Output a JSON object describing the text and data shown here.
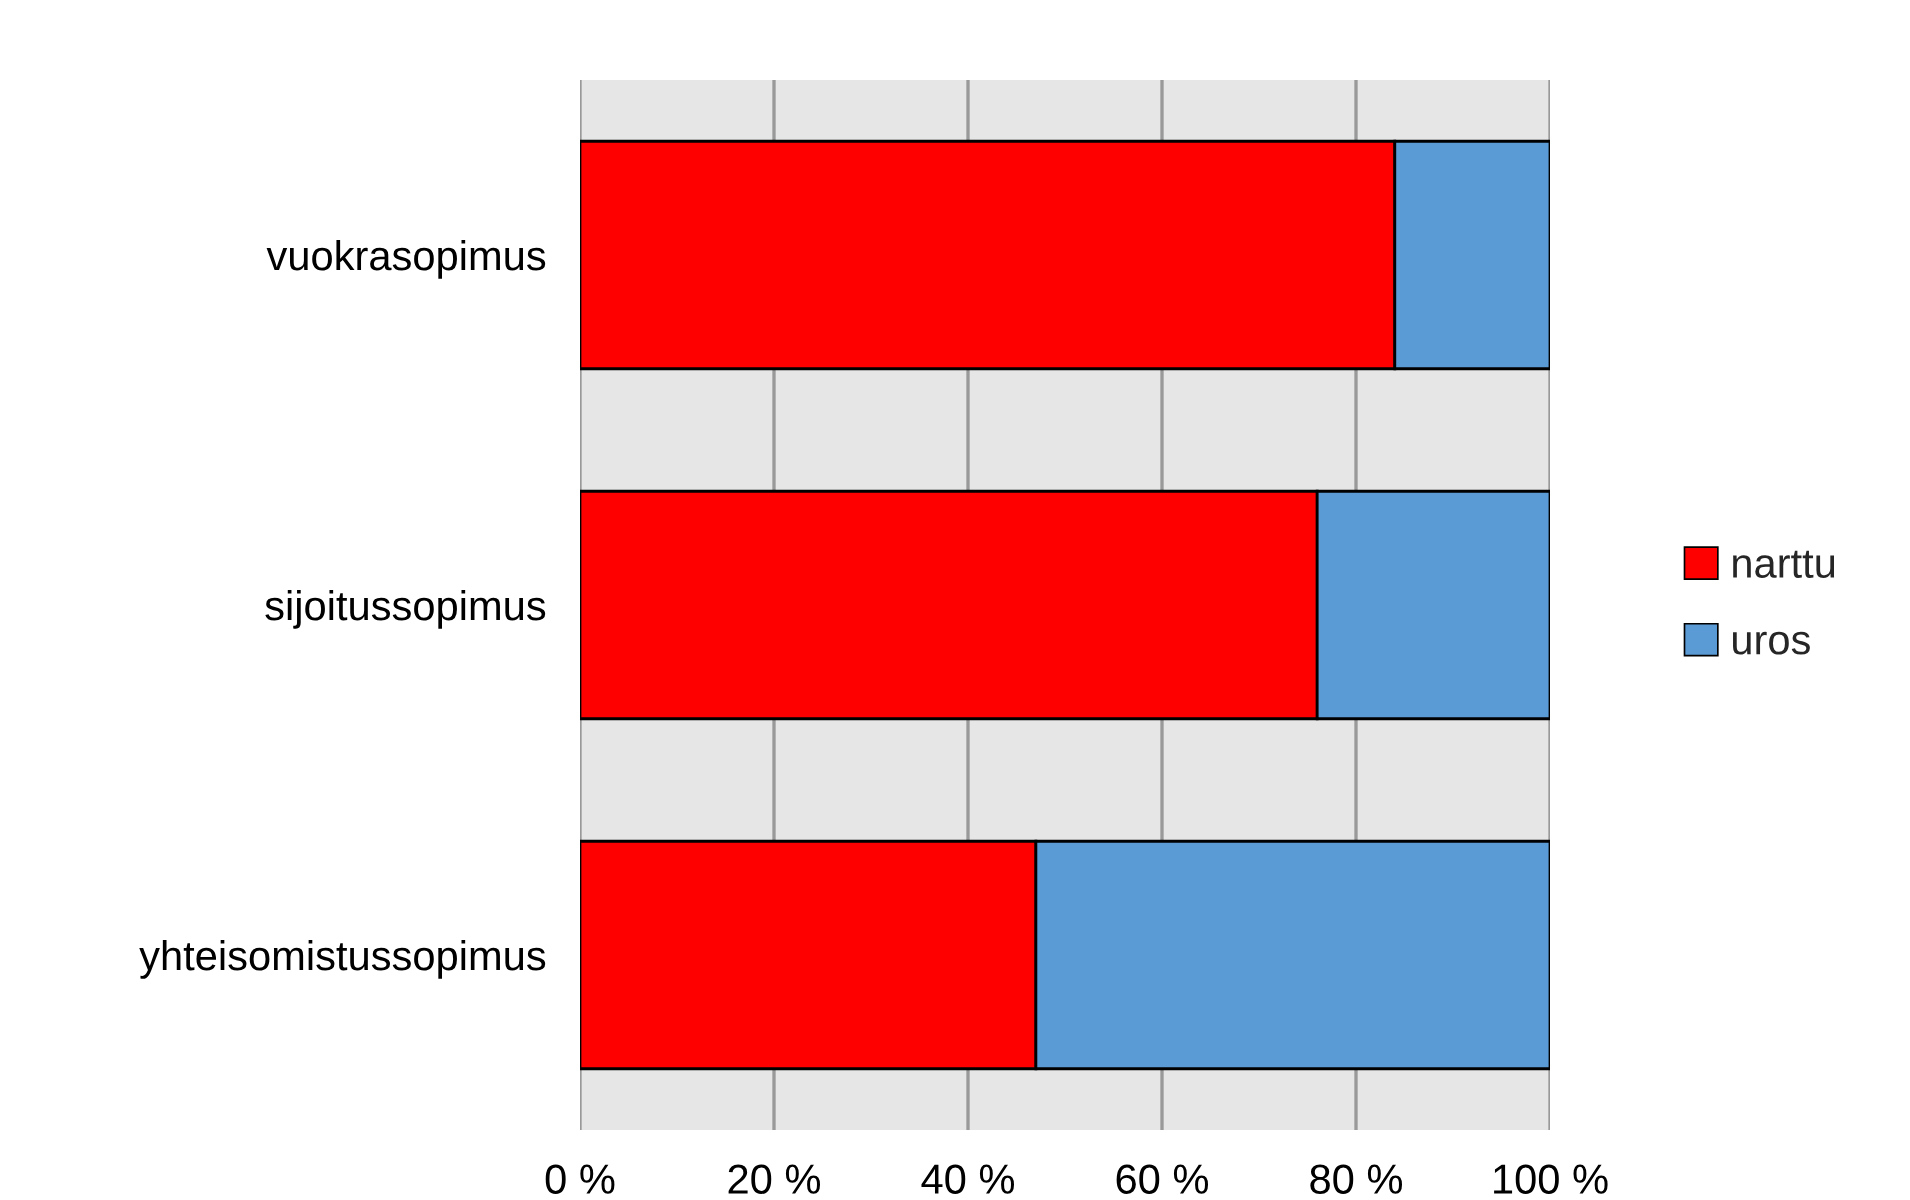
{
  "chart_data": {
    "type": "bar",
    "orientation": "horizontal",
    "stacked": true,
    "categories": [
      "vuokrasopimus",
      "sijoitussopimus",
      "yhteisomistussopimus"
    ],
    "series": [
      {
        "name": "narttu",
        "color": "#ff0000",
        "values": [
          84,
          76,
          47
        ]
      },
      {
        "name": "uros",
        "color": "#5b9bd5",
        "values": [
          16,
          24,
          53
        ]
      }
    ],
    "xlim": [
      0,
      100
    ],
    "xticks": [
      {
        "value": 0,
        "label": "0 %"
      },
      {
        "value": 20,
        "label": "20 %"
      },
      {
        "value": 40,
        "label": "40 %"
      },
      {
        "value": 60,
        "label": "60 %"
      },
      {
        "value": 80,
        "label": "80 %"
      },
      {
        "value": 100,
        "label": "100 %"
      }
    ],
    "grid": "x",
    "legend": "right"
  }
}
